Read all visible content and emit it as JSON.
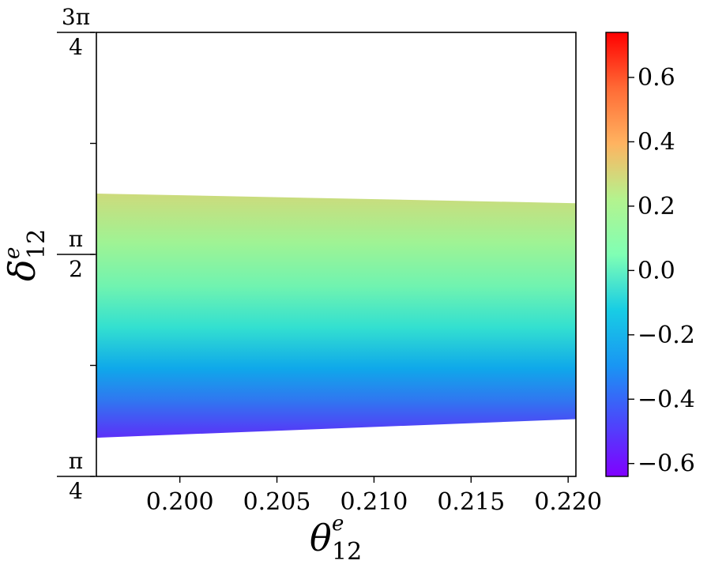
{
  "chart_data": {
    "type": "heatmap",
    "xlabel": {
      "base": "θ",
      "sup": "e",
      "sub": "12"
    },
    "ylabel": {
      "base": "δ",
      "sup": "e",
      "sub": "12"
    },
    "xlim": [
      0.1957,
      0.2204
    ],
    "ylim": [
      0.7854,
      2.3562
    ],
    "x_ticks": [
      0.2,
      0.205,
      0.21,
      0.215,
      0.22
    ],
    "x_tick_labels": [
      "0.200",
      "0.205",
      "0.210",
      "0.215",
      "0.220"
    ],
    "y_ticks": [
      0.7854,
      1.1781,
      1.5708,
      1.9635,
      2.3562
    ],
    "y_tick_labels": [
      {
        "num": "π",
        "den": "4"
      },
      {
        "num": "",
        "den": ""
      },
      {
        "num": "π",
        "den": "2"
      },
      {
        "num": "",
        "den": ""
      },
      {
        "num": "3π",
        "den": "4"
      }
    ],
    "region": {
      "upper_boundary": [
        [
          0.1957,
          1.786
        ],
        [
          0.2204,
          1.752
        ]
      ],
      "lower_boundary": [
        [
          0.1957,
          0.922
        ],
        [
          0.2204,
          0.988
        ]
      ]
    },
    "color_gradient": "bottom-to-top",
    "colorbar": {
      "colormap": "rainbow",
      "range": [
        -0.64,
        0.74
      ],
      "ticks": [
        0.6,
        0.4,
        0.2,
        0.0,
        -0.2,
        -0.4,
        -0.6
      ],
      "tick_labels": [
        "0.6",
        "0.4",
        "0.2",
        "0.0",
        "−0.2",
        "−0.4",
        "−0.6"
      ],
      "region_value_range": [
        -0.55,
        0.25
      ]
    }
  }
}
